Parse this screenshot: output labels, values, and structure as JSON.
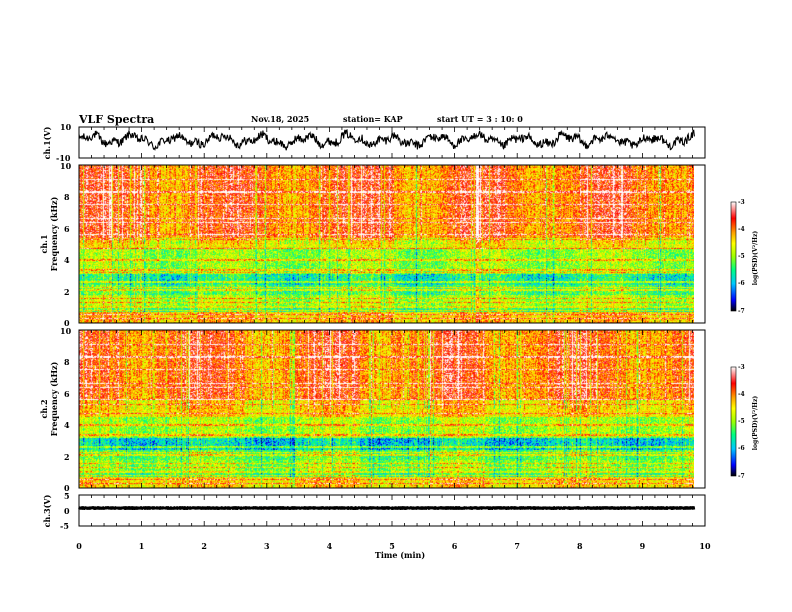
{
  "chart_data": {
    "type": "heatmap",
    "title": "VLF Spectra",
    "date": "Nov.18, 2025",
    "station": "station= KAP",
    "start_ut": "start UT =  3 : 10: 0",
    "x": {
      "label": "Time (min)",
      "range": [
        0,
        10
      ],
      "ticks": [
        0,
        1,
        2,
        3,
        4,
        5,
        6,
        7,
        8,
        9,
        10
      ],
      "data_end": 9.83
    },
    "panels": [
      {
        "id": "ch1-waveform",
        "kind": "line",
        "ylabel": "ch.1(V)",
        "ylim": [
          -10,
          10
        ],
        "yticks": [
          "10",
          "-10"
        ],
        "mean": 1.5,
        "amplitude": 4.5
      },
      {
        "id": "ch1-spectrogram",
        "kind": "spectrogram",
        "ylabel_top": "ch.1",
        "ylabel": "Frequency (kHz)",
        "ylim": [
          0,
          10
        ],
        "yticks": [
          "0",
          "2",
          "4",
          "6",
          "8",
          "10"
        ],
        "bands_khz": [
          {
            "from": 0,
            "to": 0.7,
            "level": -4.2
          },
          {
            "from": 0.7,
            "to": 1.1,
            "level": -5.3
          },
          {
            "from": 1.1,
            "to": 1.8,
            "level": -4.9
          },
          {
            "from": 1.8,
            "to": 2.4,
            "level": -5.3
          },
          {
            "from": 2.4,
            "to": 3.1,
            "level": -5.6
          },
          {
            "from": 3.1,
            "to": 4.7,
            "level": -5.0
          },
          {
            "from": 4.7,
            "to": 5.4,
            "level": -4.5
          },
          {
            "from": 5.4,
            "to": 10,
            "level": -3.8
          }
        ]
      },
      {
        "id": "ch2-spectrogram",
        "kind": "spectrogram",
        "ylabel_top": "ch.2",
        "ylabel": "Frequency (kHz)",
        "ylim": [
          0,
          10
        ],
        "yticks": [
          "0",
          "2",
          "4",
          "6",
          "8",
          "10"
        ],
        "bands_khz": [
          {
            "from": 0,
            "to": 0.7,
            "level": -4.3
          },
          {
            "from": 0.7,
            "to": 1.1,
            "level": -5.3
          },
          {
            "from": 1.1,
            "to": 1.8,
            "level": -5.0
          },
          {
            "from": 1.8,
            "to": 2.4,
            "level": -5.2
          },
          {
            "from": 2.4,
            "to": 3.2,
            "level": -5.8
          },
          {
            "from": 3.2,
            "to": 4.5,
            "level": -4.9
          },
          {
            "from": 4.5,
            "to": 5.6,
            "level": -4.3
          },
          {
            "from": 5.6,
            "to": 10,
            "level": -3.8
          }
        ]
      },
      {
        "id": "ch3-waveform",
        "kind": "line",
        "ylabel": "ch.3(V)",
        "ylim": [
          -5,
          5
        ],
        "yticks": [
          "5",
          "0",
          "-5"
        ],
        "mean": 0,
        "amplitude": 0.6
      }
    ],
    "colorbar": {
      "label": "log(PSD)(V²/Hz)",
      "range": [
        -7,
        -3
      ],
      "ticks": [
        "-3",
        "-4",
        "-5",
        "-6",
        "-7"
      ],
      "colormap": [
        "#000000",
        "#0000ff",
        "#00c8ff",
        "#00ff80",
        "#9dff00",
        "#ffff00",
        "#ffa000",
        "#ff0000",
        "#ffffff"
      ]
    }
  }
}
